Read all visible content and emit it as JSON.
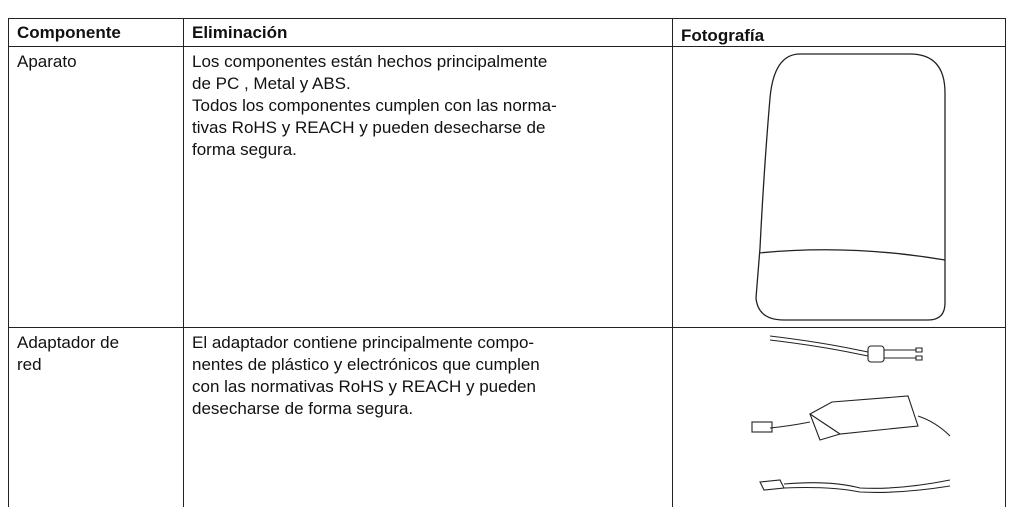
{
  "table": {
    "header": [
      "Componente",
      "Eliminación",
      "Fotografía"
    ],
    "rows": [
      [
        [
          "Aparato"
        ],
        [
          "Los componentes están hechos principalmente",
          "de PC , Metal y ABS.",
          "Todos los componentes cumplen con las norma-",
          "tivas RoHS y REACH y pueden desecharse de",
          "forma segura."
        ]
      ],
      [
        [
          "Adaptador de",
          "red"
        ],
        [
          "El adaptador contiene principalmente compo-",
          "nentes de plástico y electrónicos que cumplen",
          "con las normativas RoHS y REACH y pueden",
          "desecharse de forma segura."
        ]
      ]
    ]
  }
}
